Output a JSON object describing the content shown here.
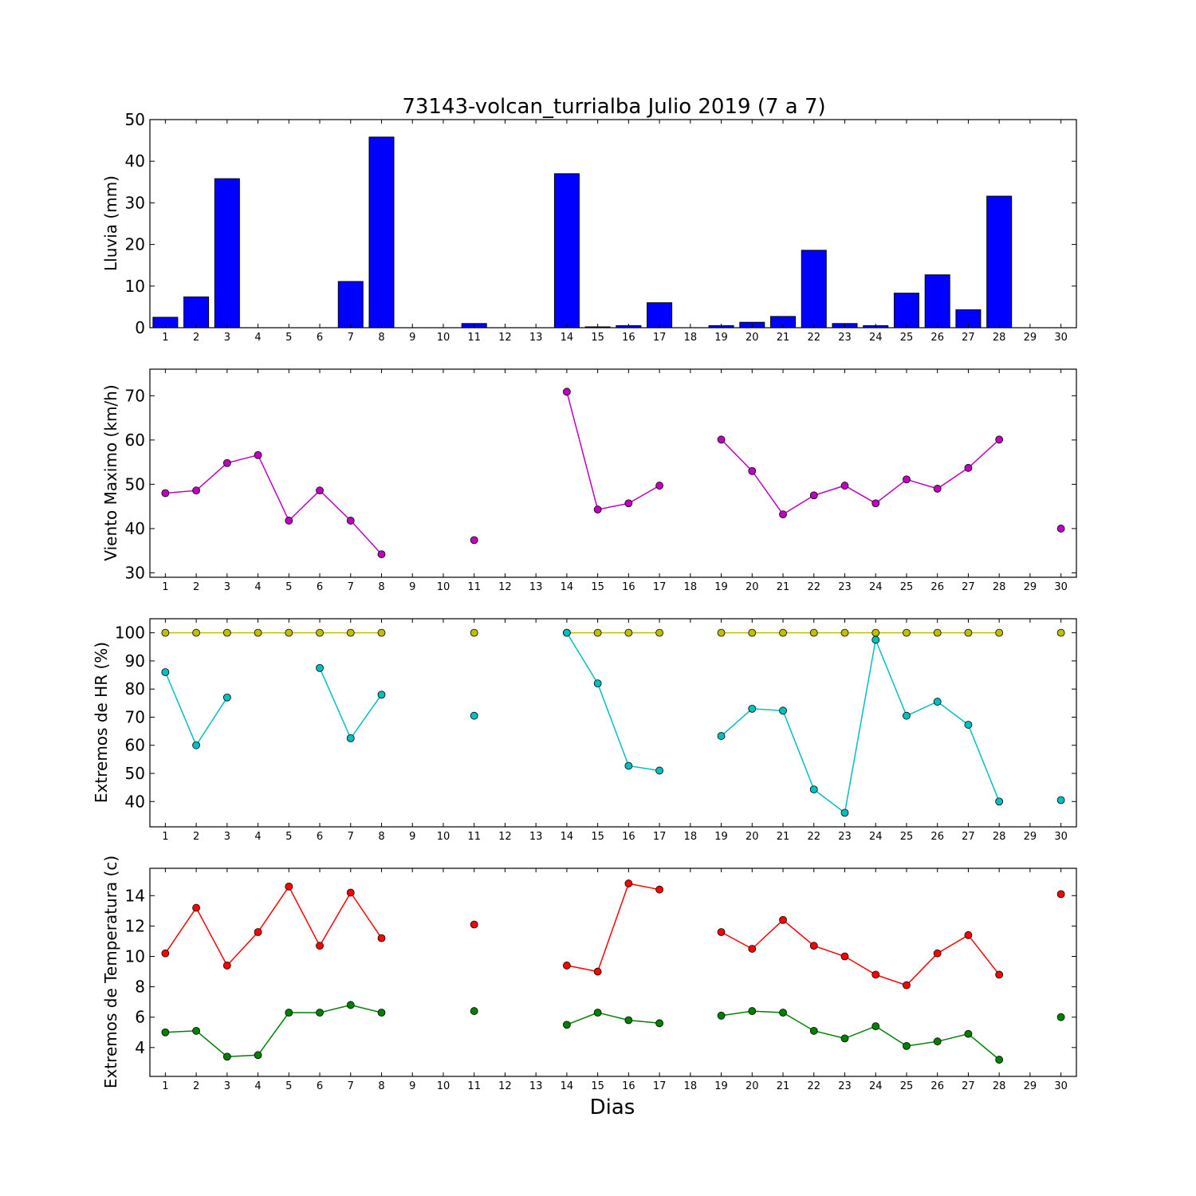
{
  "title": "73143-volcan_turrialba Julio 2019  (7 a 7)",
  "xlabel": "Dias",
  "colors": {
    "rain": "#0000ff",
    "wind": "#bf00bf",
    "hr_max": "#bfbf00",
    "hr_min": "#00bfbf",
    "temp_max": "#ff0000",
    "temp_min": "#008000"
  },
  "chart_data": [
    {
      "type": "bar",
      "ylabel": "Lluvia (mm)",
      "xlim": [
        0.5,
        30.5
      ],
      "ylim": [
        0,
        50
      ],
      "yticks": [
        0,
        10,
        20,
        30,
        40,
        50
      ],
      "x": [
        1,
        2,
        3,
        4,
        5,
        6,
        7,
        8,
        9,
        10,
        11,
        12,
        13,
        14,
        15,
        16,
        17,
        18,
        19,
        20,
        21,
        22,
        23,
        24,
        25,
        26,
        27,
        28,
        29,
        30
      ],
      "values": [
        2.5,
        7.4,
        35.8,
        0,
        0,
        0,
        11.1,
        45.8,
        0,
        0,
        1.0,
        0,
        0,
        37.0,
        0.2,
        0.5,
        6.0,
        0,
        0.5,
        1.3,
        2.7,
        18.6,
        1.0,
        0.5,
        8.3,
        12.7,
        4.3,
        31.6,
        0,
        0
      ]
    },
    {
      "type": "line",
      "ylabel": "Viento Maximo (km/h)",
      "xlim": [
        0.5,
        30.5
      ],
      "ylim": [
        29,
        76
      ],
      "yticks": [
        30,
        40,
        50,
        60,
        70
      ],
      "x": [
        1,
        2,
        3,
        4,
        5,
        6,
        7,
        8,
        9,
        10,
        11,
        12,
        13,
        14,
        15,
        16,
        17,
        18,
        19,
        20,
        21,
        22,
        23,
        24,
        25,
        26,
        27,
        28,
        29,
        30
      ],
      "series": [
        {
          "values": [
            48.0,
            48.6,
            54.8,
            56.6,
            41.8,
            48.6,
            41.8,
            34.2,
            null,
            null,
            37.4,
            null,
            null,
            70.9,
            44.3,
            45.7,
            49.7,
            null,
            60.1,
            53.0,
            43.2,
            47.5,
            49.7,
            45.7,
            51.1,
            49.0,
            53.7,
            60.1,
            null,
            40.0
          ]
        }
      ]
    },
    {
      "type": "line",
      "ylabel": "Extremos de HR (%)",
      "xlim": [
        0.5,
        30.5
      ],
      "ylim": [
        31,
        105
      ],
      "yticks": [
        40,
        50,
        60,
        70,
        80,
        90,
        100
      ],
      "x": [
        1,
        2,
        3,
        4,
        5,
        6,
        7,
        8,
        9,
        10,
        11,
        12,
        13,
        14,
        15,
        16,
        17,
        18,
        19,
        20,
        21,
        22,
        23,
        24,
        25,
        26,
        27,
        28,
        29,
        30
      ],
      "series": [
        {
          "values": [
            100,
            100,
            100,
            100,
            100,
            100,
            100,
            100,
            null,
            null,
            100,
            null,
            null,
            100,
            100,
            100,
            100,
            null,
            100,
            100,
            100,
            100,
            100,
            100,
            100,
            100,
            100,
            100,
            null,
            100
          ]
        },
        {
          "values": [
            86,
            60,
            77,
            null,
            null,
            87.5,
            62.5,
            78,
            null,
            null,
            70.5,
            null,
            null,
            100,
            82,
            52.7,
            51,
            null,
            63.3,
            73,
            72.3,
            44.3,
            36,
            97.5,
            70.5,
            75.5,
            67.3,
            40,
            null,
            40.5
          ]
        }
      ]
    },
    {
      "type": "line",
      "ylabel": "Extremos de Temperatura (c)",
      "xlim": [
        0.5,
        30.5
      ],
      "ylim": [
        2.1,
        15.8
      ],
      "yticks": [
        4,
        6,
        8,
        10,
        12,
        14
      ],
      "x": [
        1,
        2,
        3,
        4,
        5,
        6,
        7,
        8,
        9,
        10,
        11,
        12,
        13,
        14,
        15,
        16,
        17,
        18,
        19,
        20,
        21,
        22,
        23,
        24,
        25,
        26,
        27,
        28,
        29,
        30
      ],
      "series": [
        {
          "values": [
            10.2,
            13.2,
            9.4,
            11.6,
            14.6,
            10.7,
            14.2,
            11.2,
            null,
            null,
            12.1,
            null,
            null,
            9.4,
            9.0,
            14.8,
            14.4,
            null,
            11.6,
            10.5,
            12.4,
            10.7,
            10.0,
            8.8,
            8.1,
            10.2,
            11.4,
            8.8,
            null,
            14.1
          ]
        },
        {
          "values": [
            5.0,
            5.1,
            3.4,
            3.5,
            6.3,
            6.3,
            6.8,
            6.3,
            null,
            null,
            6.4,
            null,
            null,
            5.5,
            6.3,
            5.8,
            5.6,
            null,
            6.1,
            6.4,
            6.3,
            5.1,
            4.6,
            5.4,
            4.1,
            4.4,
            4.9,
            3.2,
            null,
            6.0
          ]
        }
      ]
    }
  ]
}
